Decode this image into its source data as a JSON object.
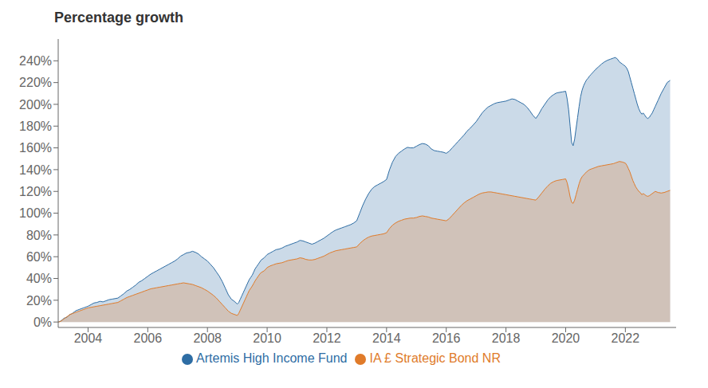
{
  "chart_data": {
    "type": "area",
    "title": "Percentage growth",
    "x": [
      2003.0,
      2003.05,
      2003.1,
      2003.15,
      2003.2,
      2003.25,
      2003.3,
      2003.35,
      2003.4,
      2003.45,
      2003.5,
      2003.55,
      2003.6,
      2003.65,
      2003.7,
      2003.75,
      2003.8,
      2003.85,
      2003.9,
      2003.95,
      2004.0,
      2004.1,
      2004.2,
      2004.3,
      2004.4,
      2004.5,
      2004.6,
      2004.7,
      2004.8,
      2004.9,
      2005.0,
      2005.1,
      2005.2,
      2005.3,
      2005.4,
      2005.5,
      2005.6,
      2005.7,
      2005.8,
      2005.9,
      2006.0,
      2006.1,
      2006.2,
      2006.3,
      2006.4,
      2006.5,
      2006.6,
      2006.7,
      2006.8,
      2006.9,
      2007.0,
      2007.1,
      2007.2,
      2007.3,
      2007.4,
      2007.5,
      2007.6,
      2007.7,
      2007.8,
      2007.9,
      2008.0,
      2008.1,
      2008.2,
      2008.3,
      2008.4,
      2008.5,
      2008.6,
      2008.7,
      2008.8,
      2008.9,
      2009.0,
      2009.05,
      2009.1,
      2009.15,
      2009.2,
      2009.25,
      2009.3,
      2009.35,
      2009.4,
      2009.45,
      2009.5,
      2009.55,
      2009.6,
      2009.65,
      2009.7,
      2009.75,
      2009.8,
      2009.9,
      2009.95,
      2010.0,
      2010.1,
      2010.2,
      2010.3,
      2010.4,
      2010.5,
      2010.6,
      2010.7,
      2010.8,
      2010.9,
      2011.0,
      2011.1,
      2011.2,
      2011.3,
      2011.4,
      2011.5,
      2011.6,
      2011.7,
      2011.8,
      2011.9,
      2012.0,
      2012.1,
      2012.2,
      2012.3,
      2012.4,
      2012.5,
      2012.6,
      2012.7,
      2012.8,
      2012.9,
      2013.0,
      2013.1,
      2013.2,
      2013.3,
      2013.4,
      2013.5,
      2013.6,
      2013.7,
      2013.8,
      2013.9,
      2014.0,
      2014.1,
      2014.2,
      2014.3,
      2014.4,
      2014.5,
      2014.6,
      2014.7,
      2014.8,
      2014.9,
      2015.0,
      2015.1,
      2015.2,
      2015.3,
      2015.4,
      2015.5,
      2015.6,
      2015.7,
      2015.8,
      2015.9,
      2016.0,
      2016.1,
      2016.2,
      2016.3,
      2016.4,
      2016.5,
      2016.6,
      2016.7,
      2016.8,
      2016.9,
      2017.0,
      2017.1,
      2017.2,
      2017.3,
      2017.4,
      2017.5,
      2017.6,
      2017.7,
      2017.8,
      2017.9,
      2018.0,
      2018.1,
      2018.2,
      2018.3,
      2018.4,
      2018.5,
      2018.6,
      2018.7,
      2018.8,
      2018.9,
      2019.0,
      2019.1,
      2019.2,
      2019.3,
      2019.4,
      2019.5,
      2019.6,
      2019.7,
      2019.8,
      2019.9,
      2020.0,
      2020.05,
      2020.1,
      2020.15,
      2020.2,
      2020.25,
      2020.3,
      2020.35,
      2020.4,
      2020.45,
      2020.5,
      2020.55,
      2020.6,
      2020.65,
      2020.7,
      2020.75,
      2020.8,
      2020.85,
      2020.9,
      2020.95,
      2021.0,
      2021.1,
      2021.2,
      2021.3,
      2021.4,
      2021.5,
      2021.6,
      2021.65,
      2021.7,
      2021.75,
      2021.8,
      2021.9,
      2021.95,
      2022.0,
      2022.05,
      2022.1,
      2022.15,
      2022.2,
      2022.25,
      2022.3,
      2022.35,
      2022.4,
      2022.45,
      2022.5,
      2022.55,
      2022.6,
      2022.65,
      2022.7,
      2022.75,
      2022.8,
      2022.85,
      2022.9,
      2022.95,
      2023.0,
      2023.1,
      2023.2,
      2023.3,
      2023.4,
      2023.5
    ],
    "series": [
      {
        "name": "Artemis High Income Fund",
        "color": "#2e6da4",
        "values": [
          0,
          0.5,
          1.0,
          2.5,
          3.5,
          4.0,
          4.5,
          6.0,
          7.0,
          7.5,
          8.5,
          9.5,
          10.5,
          11.0,
          11.5,
          12.0,
          12.5,
          13.0,
          13.5,
          14.0,
          14.5,
          16.0,
          17.5,
          18.0,
          19.0,
          18.5,
          19.5,
          20.5,
          21.0,
          21.5,
          22.0,
          24.0,
          26.0,
          28.5,
          30.0,
          32.0,
          34.0,
          36.5,
          38.0,
          40.0,
          42.0,
          44.0,
          45.5,
          47.0,
          48.5,
          50.0,
          51.5,
          53.0,
          54.5,
          56.0,
          58.0,
          60.5,
          62.0,
          63.5,
          64.0,
          65.0,
          64.0,
          62.5,
          60.0,
          58.0,
          56.0,
          53.0,
          50.0,
          46.0,
          42.0,
          37.0,
          31.0,
          25.0,
          21.0,
          19.0,
          16.5,
          18.0,
          21.0,
          24.0,
          27.0,
          30.0,
          33.0,
          36.0,
          39.0,
          41.0,
          43.0,
          46.0,
          49.0,
          51.0,
          53.0,
          55.0,
          57.0,
          59.0,
          60.5,
          62.0,
          63.5,
          65.0,
          66.5,
          67.0,
          68.0,
          69.5,
          70.5,
          71.5,
          72.5,
          73.5,
          75.0,
          74.5,
          73.5,
          72.5,
          71.5,
          72.5,
          74.0,
          75.5,
          77.0,
          79.0,
          81.0,
          83.0,
          84.5,
          85.5,
          86.5,
          87.5,
          88.5,
          89.5,
          91.0,
          93.0,
          100.0,
          107.0,
          113.0,
          118.0,
          122.0,
          124.5,
          126.0,
          127.5,
          129.0,
          131.0,
          140.0,
          147.0,
          152.0,
          155.0,
          157.0,
          159.0,
          160.5,
          160.0,
          160.0,
          161.5,
          163.0,
          164.0,
          163.5,
          162.0,
          159.0,
          157.5,
          157.0,
          156.5,
          156.0,
          155.0,
          157.0,
          160.0,
          163.0,
          166.0,
          169.0,
          172.0,
          175.5,
          178.0,
          181.0,
          184.0,
          188.0,
          192.0,
          195.0,
          197.5,
          199.0,
          200.5,
          201.5,
          202.0,
          202.5,
          203.0,
          204.0,
          205.0,
          204.5,
          203.0,
          201.5,
          200.0,
          197.5,
          194.0,
          190.0,
          187.0,
          191.0,
          196.0,
          200.0,
          204.0,
          207.0,
          209.0,
          210.5,
          211.0,
          211.5,
          212.0,
          205.0,
          195.0,
          180.0,
          165.0,
          162.0,
          168.0,
          178.0,
          188.0,
          198.0,
          207.0,
          213.0,
          217.0,
          220.0,
          222.5,
          224.0,
          226.0,
          227.5,
          229.0,
          230.5,
          232.0,
          234.5,
          237.0,
          239.0,
          240.5,
          241.5,
          242.5,
          243.0,
          242.5,
          241.0,
          239.0,
          237.0,
          236.0,
          235.0,
          233.0,
          230.0,
          225.0,
          220.0,
          215.0,
          210.0,
          205.0,
          200.0,
          196.0,
          193.0,
          191.0,
          192.0,
          190.0,
          188.0,
          187.0,
          188.0,
          190.0,
          192.0,
          195.0,
          198.0,
          204.0,
          210.0,
          215.0,
          220.0,
          222.0
        ]
      },
      {
        "name": "IA £ Strategic Bond NR",
        "color": "#e07b2a",
        "values": [
          0,
          0.3,
          1.0,
          2.0,
          3.0,
          4.0,
          5.0,
          6.0,
          7.0,
          7.5,
          8.0,
          8.5,
          9.0,
          9.5,
          10.0,
          10.5,
          11.0,
          11.5,
          12.0,
          12.5,
          13.0,
          13.5,
          14.0,
          14.5,
          15.0,
          15.5,
          16.0,
          16.5,
          17.0,
          17.5,
          18.0,
          19.5,
          21.0,
          22.5,
          23.5,
          24.5,
          25.5,
          26.5,
          27.5,
          28.5,
          29.5,
          30.5,
          31.0,
          31.5,
          32.0,
          32.5,
          33.0,
          33.5,
          34.0,
          34.5,
          35.0,
          35.5,
          36.0,
          35.5,
          35.0,
          34.5,
          33.5,
          32.5,
          31.5,
          30.0,
          28.5,
          26.5,
          24.5,
          22.0,
          19.0,
          16.0,
          13.0,
          10.0,
          8.0,
          7.0,
          6.0,
          8.0,
          11.0,
          14.0,
          17.0,
          20.0,
          23.0,
          26.0,
          29.0,
          31.0,
          33.0,
          35.5,
          38.0,
          40.0,
          42.0,
          44.0,
          45.5,
          47.0,
          48.5,
          50.0,
          51.5,
          52.5,
          53.5,
          54.0,
          54.5,
          55.5,
          56.5,
          57.0,
          57.5,
          58.0,
          59.0,
          58.5,
          57.5,
          57.0,
          57.0,
          57.5,
          58.5,
          59.5,
          60.5,
          62.0,
          63.5,
          64.5,
          65.5,
          66.0,
          66.5,
          67.0,
          67.5,
          68.0,
          68.5,
          69.0,
          72.0,
          74.5,
          76.5,
          78.0,
          79.0,
          79.5,
          80.0,
          80.5,
          81.0,
          82.0,
          86.0,
          89.0,
          91.0,
          92.5,
          93.5,
          94.5,
          95.0,
          95.5,
          95.5,
          96.0,
          97.0,
          97.5,
          97.0,
          96.5,
          95.5,
          95.0,
          94.5,
          94.0,
          93.5,
          93.0,
          95.0,
          98.0,
          101.0,
          104.0,
          107.0,
          109.5,
          111.5,
          113.0,
          114.5,
          116.0,
          117.5,
          118.5,
          119.0,
          119.5,
          119.5,
          119.0,
          118.5,
          118.0,
          117.5,
          117.0,
          116.5,
          116.0,
          115.5,
          115.0,
          114.5,
          114.0,
          113.5,
          113.0,
          112.5,
          112.0,
          115.0,
          118.5,
          122.0,
          125.0,
          127.5,
          129.0,
          130.0,
          130.5,
          131.0,
          131.5,
          128.0,
          122.0,
          115.0,
          110.0,
          109.0,
          112.0,
          117.0,
          122.0,
          127.0,
          131.0,
          133.5,
          135.0,
          136.5,
          138.0,
          139.0,
          140.0,
          140.5,
          141.0,
          141.5,
          142.0,
          143.0,
          143.5,
          144.0,
          144.5,
          145.0,
          145.5,
          146.0,
          146.5,
          147.0,
          147.5,
          147.0,
          146.5,
          146.0,
          144.0,
          141.0,
          138.0,
          134.0,
          130.0,
          127.0,
          124.0,
          122.0,
          120.0,
          119.0,
          117.0,
          118.0,
          117.0,
          116.0,
          115.5,
          116.0,
          117.0,
          118.0,
          119.0,
          120.0,
          119.0,
          118.5,
          119.0,
          120.0,
          121.0
        ]
      }
    ],
    "xlim": [
      2003.0,
      2023.7
    ],
    "xticks": [
      2004,
      2006,
      2008,
      2010,
      2012,
      2014,
      2016,
      2018,
      2020,
      2022
    ],
    "ylim": [
      -5,
      260
    ],
    "yticks": [
      {
        "value": 0,
        "label": "0%"
      },
      {
        "value": 20,
        "label": "20%"
      },
      {
        "value": 40,
        "label": "40%"
      },
      {
        "value": 60,
        "label": "60%"
      },
      {
        "value": 80,
        "label": "80%"
      },
      {
        "value": 100,
        "label": "100%"
      },
      {
        "value": 120,
        "label": "120%"
      },
      {
        "value": 140,
        "label": "140%"
      },
      {
        "value": 160,
        "label": "160%"
      },
      {
        "value": 180,
        "label": "180%"
      },
      {
        "value": 200,
        "label": "200%"
      },
      {
        "value": 220,
        "label": "220%"
      },
      {
        "value": 240,
        "label": "240%"
      }
    ],
    "grid": false,
    "legend": "bottom"
  }
}
